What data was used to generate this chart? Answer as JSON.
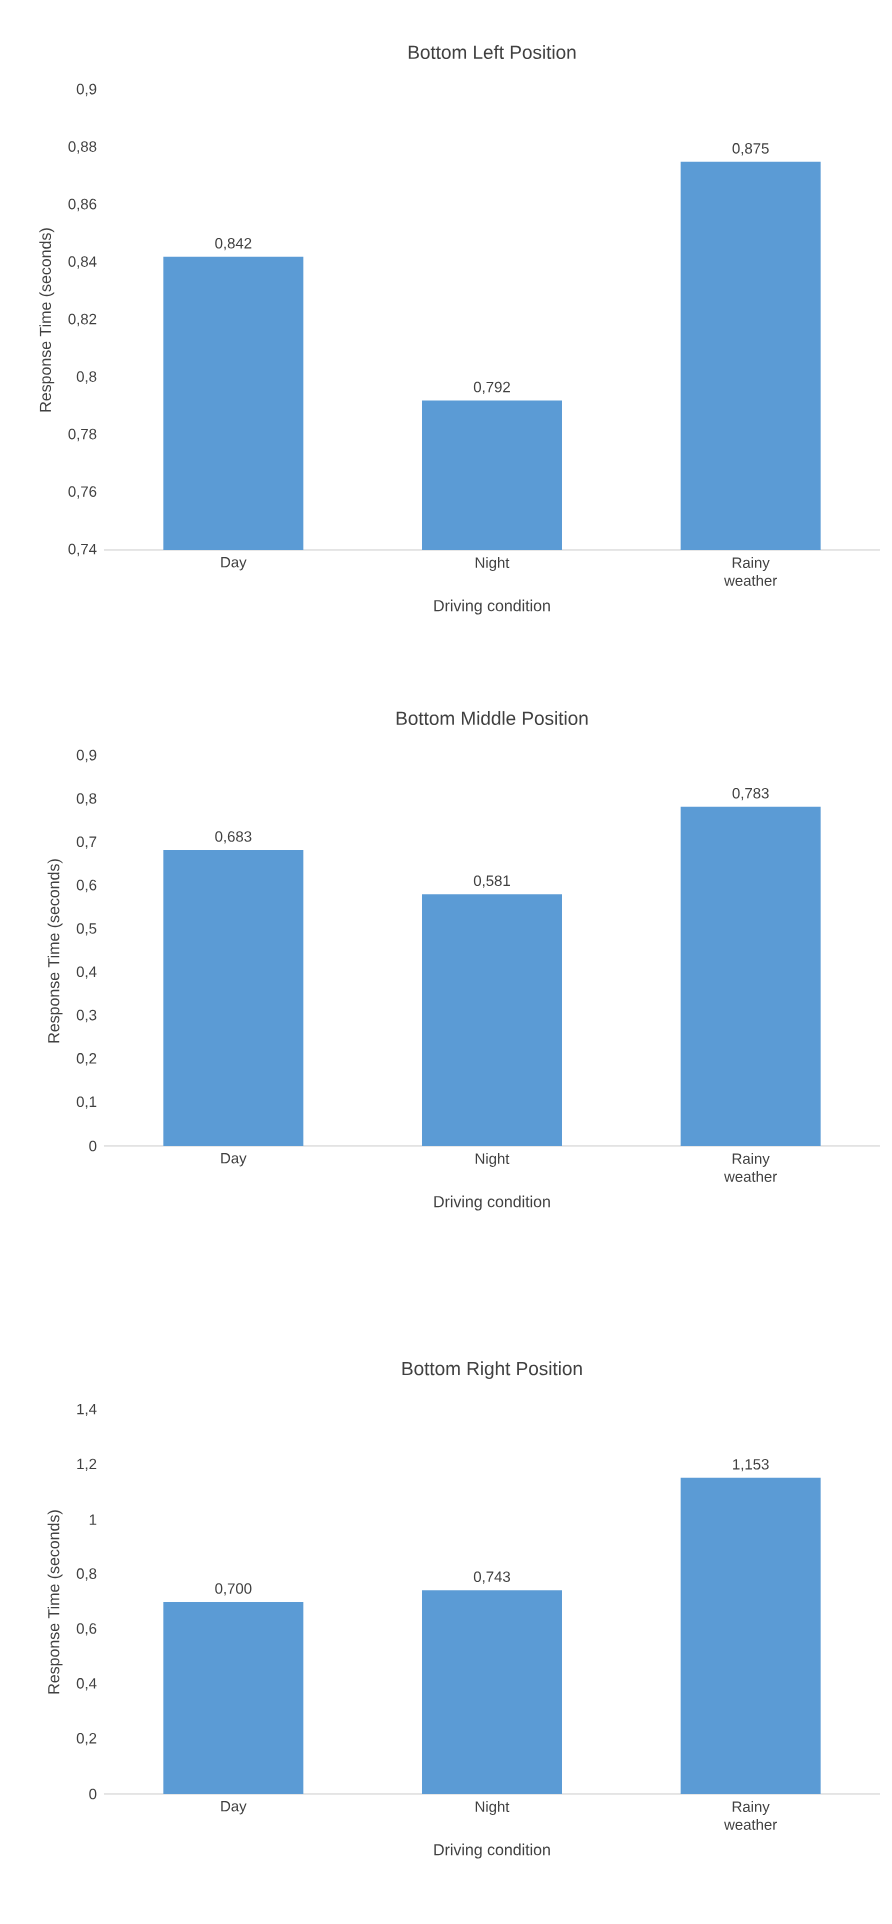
{
  "chart_data": [
    {
      "type": "bar",
      "title": "Bottom Left Position",
      "xlabel": "Driving condition",
      "ylabel": "Response Time (seconds)",
      "categories": [
        "Day",
        "Night",
        "Rainy weather"
      ],
      "values": [
        0.842,
        0.792,
        0.875
      ],
      "value_labels": [
        "0,842",
        "0,792",
        "0,875"
      ],
      "color": "#5b9bd5",
      "ylim": [
        0.74,
        0.9
      ],
      "yticks": [
        {
          "value": 0.74,
          "label": "0,74"
        },
        {
          "value": 0.76,
          "label": "0,76"
        },
        {
          "value": 0.78,
          "label": "0,78"
        },
        {
          "value": 0.8,
          "label": "0,8"
        },
        {
          "value": 0.82,
          "label": "0,82"
        },
        {
          "value": 0.84,
          "label": "0,84"
        },
        {
          "value": 0.86,
          "label": "0,86"
        },
        {
          "value": 0.88,
          "label": "0,88"
        },
        {
          "value": 0.9,
          "label": "0,9"
        }
      ]
    },
    {
      "type": "bar",
      "title": "Bottom Middle Position",
      "xlabel": "Driving condition",
      "ylabel": "Response Time (seconds)",
      "categories": [
        "Day",
        "Night",
        "Rainy weather"
      ],
      "values": [
        0.683,
        0.581,
        0.783
      ],
      "value_labels": [
        "0,683",
        "0,581",
        "0,783"
      ],
      "color": "#5b9bd5",
      "ylim": [
        0,
        0.9
      ],
      "yticks": [
        0,
        {
          "value": 0.1,
          "label": "0,1"
        },
        {
          "value": 0.2,
          "label": "0,2"
        },
        {
          "value": 0.3,
          "label": "0,3"
        },
        {
          "value": 0.4,
          "label": "0,4"
        },
        {
          "value": 0.5,
          "label": "0,5"
        },
        {
          "value": 0.6,
          "label": "0,6"
        },
        {
          "value": 0.7,
          "label": "0,7"
        },
        {
          "value": 0.8,
          "label": "0,8"
        },
        {
          "value": 0.9,
          "label": "0,9"
        }
      ]
    },
    {
      "type": "bar",
      "title": "Bottom Right Position",
      "xlabel": "Driving condition",
      "ylabel": "Response Time (seconds)",
      "categories": [
        "Day",
        "Night",
        "Rainy weather"
      ],
      "values": [
        0.7,
        0.743,
        1.153
      ],
      "value_labels": [
        "0,700",
        "0,743",
        "1,153"
      ],
      "color": "#5b9bd5",
      "ylim": [
        0,
        1.4
      ],
      "yticks": [
        0,
        {
          "value": 0.2,
          "label": "0,2"
        },
        {
          "value": 0.4,
          "label": "0,4"
        },
        {
          "value": 0.6,
          "label": "0,6"
        },
        {
          "value": 0.8,
          "label": "0,8"
        },
        1,
        {
          "value": 1.2,
          "label": "1,2"
        },
        {
          "value": 1.4,
          "label": "1,4"
        }
      ]
    }
  ]
}
